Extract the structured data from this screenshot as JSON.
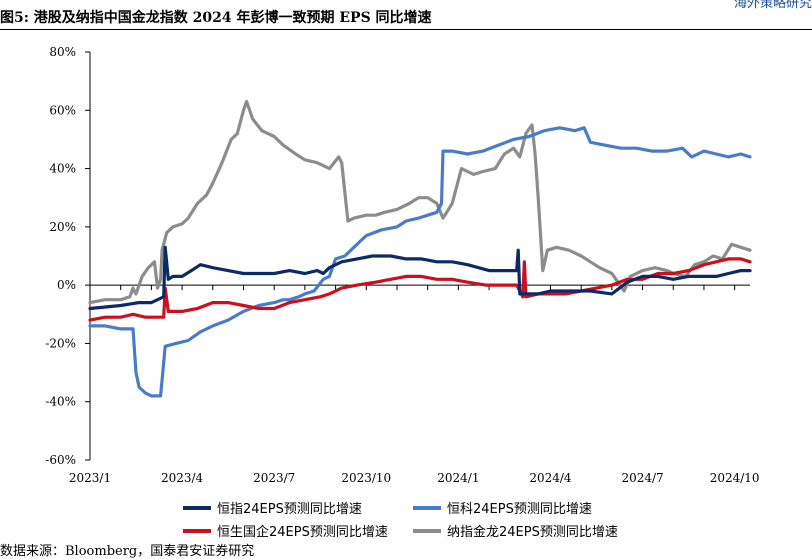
{
  "header": {
    "corner_text": "海外策略研究",
    "figure_title": "图5: 港股及纳指中国金龙指数 2024 年彭博一致预期 EPS 同比增速"
  },
  "source_note": "数据来源：Bloomberg，国泰君安证券研究",
  "colors": {
    "hsi": "#0d2a66",
    "hstech": "#4a7bc8",
    "hscei": "#c8101e",
    "hxc": "#8c8c8c"
  },
  "chart_data": {
    "type": "line",
    "title": "",
    "xlabel": "",
    "ylabel": "",
    "x_ticks": [
      "2023/1",
      "2023/4",
      "2023/7",
      "2023/10",
      "2024/1",
      "2024/4",
      "2024/7",
      "2024/10"
    ],
    "x_range_months": [
      0,
      21.5
    ],
    "ylim": [
      -60,
      80
    ],
    "y_ticks": [
      "80%",
      "60%",
      "40%",
      "20%",
      "0%",
      "-20%",
      "-40%",
      "-60%"
    ],
    "y_tick_values": [
      80,
      60,
      40,
      20,
      0,
      -20,
      -40,
      -60
    ],
    "legend": "bottom, two rows",
    "series": [
      {
        "name": "恒指24EPS预测同比增速",
        "color_key": "hsi",
        "points": [
          [
            0,
            -8
          ],
          [
            1,
            -7
          ],
          [
            1.6,
            -6
          ],
          [
            2,
            -6
          ],
          [
            2.4,
            -4
          ],
          [
            2.45,
            13
          ],
          [
            2.55,
            2
          ],
          [
            2.7,
            3
          ],
          [
            3,
            3
          ],
          [
            3.3,
            5
          ],
          [
            3.6,
            7
          ],
          [
            4,
            6
          ],
          [
            4.5,
            5
          ],
          [
            5,
            4
          ],
          [
            5.5,
            4
          ],
          [
            6,
            4
          ],
          [
            6.5,
            5
          ],
          [
            7,
            4
          ],
          [
            7.4,
            5
          ],
          [
            7.6,
            4
          ],
          [
            7.8,
            6
          ],
          [
            8.2,
            8
          ],
          [
            8.7,
            9
          ],
          [
            9.2,
            10
          ],
          [
            9.8,
            10
          ],
          [
            10.3,
            9
          ],
          [
            10.8,
            9
          ],
          [
            11.3,
            8
          ],
          [
            11.8,
            8
          ],
          [
            12.3,
            7
          ],
          [
            13,
            5
          ],
          [
            13.9,
            5
          ],
          [
            13.95,
            12
          ],
          [
            14.0,
            -3
          ],
          [
            14.1,
            -3
          ],
          [
            14.6,
            -3
          ],
          [
            15,
            -2
          ],
          [
            15.5,
            -2
          ],
          [
            15.8,
            -2
          ],
          [
            16.3,
            -2
          ],
          [
            17,
            -3
          ],
          [
            17.5,
            1
          ],
          [
            18,
            3
          ],
          [
            18.5,
            3
          ],
          [
            19,
            2
          ],
          [
            19.5,
            3
          ],
          [
            20,
            3
          ],
          [
            20.4,
            3
          ],
          [
            20.8,
            4
          ],
          [
            21.2,
            5
          ],
          [
            21.5,
            5
          ]
        ]
      },
      {
        "name": "恒科24EPS预测同比增速",
        "color_key": "hstech",
        "points": [
          [
            0,
            -14
          ],
          [
            0.5,
            -14
          ],
          [
            1,
            -15
          ],
          [
            1.4,
            -15
          ],
          [
            1.5,
            -30
          ],
          [
            1.6,
            -35
          ],
          [
            1.8,
            -37
          ],
          [
            2,
            -38
          ],
          [
            2.3,
            -38
          ],
          [
            2.45,
            -21
          ],
          [
            2.8,
            -20
          ],
          [
            3.2,
            -19
          ],
          [
            3.6,
            -16
          ],
          [
            4,
            -14
          ],
          [
            4.5,
            -12
          ],
          [
            5,
            -9
          ],
          [
            5.5,
            -7
          ],
          [
            6,
            -6
          ],
          [
            6.3,
            -5
          ],
          [
            6.5,
            -5
          ],
          [
            6.8,
            -4
          ],
          [
            7,
            -3
          ],
          [
            7.3,
            -2
          ],
          [
            7.6,
            2
          ],
          [
            7.8,
            3
          ],
          [
            8,
            9
          ],
          [
            8.3,
            10
          ],
          [
            8.5,
            12
          ],
          [
            8.8,
            15
          ],
          [
            9,
            17
          ],
          [
            9.5,
            19
          ],
          [
            10,
            20
          ],
          [
            10.3,
            22
          ],
          [
            10.7,
            23
          ],
          [
            11,
            24
          ],
          [
            11.3,
            25
          ],
          [
            11.45,
            28
          ],
          [
            11.5,
            46
          ],
          [
            11.8,
            46
          ],
          [
            12.3,
            45
          ],
          [
            12.8,
            46
          ],
          [
            13.3,
            48
          ],
          [
            13.8,
            50
          ],
          [
            14.3,
            51
          ],
          [
            14.8,
            53
          ],
          [
            15.3,
            54
          ],
          [
            15.8,
            53
          ],
          [
            16.1,
            54
          ],
          [
            16.3,
            49
          ],
          [
            16.8,
            48
          ],
          [
            17.3,
            47
          ],
          [
            17.8,
            47
          ],
          [
            18.3,
            46
          ],
          [
            18.8,
            46
          ],
          [
            19.3,
            47
          ],
          [
            19.6,
            44
          ],
          [
            20.0,
            46
          ],
          [
            20.4,
            45
          ],
          [
            20.8,
            44
          ],
          [
            21.2,
            45
          ],
          [
            21.5,
            44
          ]
        ]
      },
      {
        "name": "恒生国企24EPS预测同比增速",
        "color_key": "hscei",
        "points": [
          [
            0,
            -12
          ],
          [
            0.5,
            -11
          ],
          [
            1,
            -11
          ],
          [
            1.4,
            -10
          ],
          [
            1.8,
            -11
          ],
          [
            2.4,
            -11
          ],
          [
            2.45,
            -1
          ],
          [
            2.55,
            -9
          ],
          [
            3,
            -9
          ],
          [
            3.5,
            -8
          ],
          [
            4,
            -6
          ],
          [
            4.5,
            -6
          ],
          [
            5,
            -7
          ],
          [
            5.5,
            -8
          ],
          [
            6,
            -8
          ],
          [
            6.5,
            -6
          ],
          [
            7,
            -5
          ],
          [
            7.5,
            -4
          ],
          [
            7.8,
            -3
          ],
          [
            8.2,
            -1
          ],
          [
            8.7,
            0
          ],
          [
            9.3,
            1
          ],
          [
            9.8,
            2
          ],
          [
            10.3,
            3
          ],
          [
            10.8,
            3
          ],
          [
            11.3,
            2
          ],
          [
            11.8,
            2
          ],
          [
            12.3,
            1
          ],
          [
            12.9,
            0
          ],
          [
            13.4,
            0
          ],
          [
            13.9,
            0
          ],
          [
            14.1,
            -4
          ],
          [
            14.15,
            8
          ],
          [
            14.2,
            -4
          ],
          [
            14.6,
            -3
          ],
          [
            15,
            -3
          ],
          [
            15.5,
            -3
          ],
          [
            16,
            -2
          ],
          [
            16.5,
            -1
          ],
          [
            17,
            0
          ],
          [
            17.5,
            2
          ],
          [
            18,
            2
          ],
          [
            18.5,
            4
          ],
          [
            19,
            4
          ],
          [
            19.5,
            5
          ],
          [
            20,
            7
          ],
          [
            20.4,
            8
          ],
          [
            20.8,
            9
          ],
          [
            21.2,
            9
          ],
          [
            21.5,
            8
          ]
        ]
      },
      {
        "name": "纳指金龙24EPS预测同比增速",
        "color_key": "hxc",
        "points": [
          [
            0,
            -6
          ],
          [
            0.5,
            -5
          ],
          [
            1,
            -5
          ],
          [
            1.3,
            -4
          ],
          [
            1.4,
            -1
          ],
          [
            1.5,
            -3
          ],
          [
            1.7,
            3
          ],
          [
            1.9,
            6
          ],
          [
            2.1,
            8
          ],
          [
            2.2,
            -1
          ],
          [
            2.3,
            2
          ],
          [
            2.35,
            12
          ],
          [
            2.5,
            18
          ],
          [
            2.7,
            20
          ],
          [
            3,
            21
          ],
          [
            3.2,
            23
          ],
          [
            3.5,
            28
          ],
          [
            3.8,
            31
          ],
          [
            4,
            35
          ],
          [
            4.3,
            42
          ],
          [
            4.6,
            50
          ],
          [
            4.8,
            52
          ],
          [
            5,
            60
          ],
          [
            5.1,
            63
          ],
          [
            5.3,
            57
          ],
          [
            5.6,
            53
          ],
          [
            6,
            51
          ],
          [
            6.3,
            48
          ],
          [
            6.7,
            45
          ],
          [
            7,
            43
          ],
          [
            7.4,
            42
          ],
          [
            7.8,
            40
          ],
          [
            8.1,
            44
          ],
          [
            8.2,
            42
          ],
          [
            8.4,
            22
          ],
          [
            8.6,
            23
          ],
          [
            9,
            24
          ],
          [
            9.3,
            24
          ],
          [
            9.6,
            25
          ],
          [
            10,
            26
          ],
          [
            10.4,
            28
          ],
          [
            10.7,
            30
          ],
          [
            11,
            30
          ],
          [
            11.3,
            28
          ],
          [
            11.5,
            23
          ],
          [
            11.8,
            28
          ],
          [
            12.1,
            40
          ],
          [
            12.5,
            38
          ],
          [
            12.8,
            39
          ],
          [
            13.2,
            40
          ],
          [
            13.5,
            45
          ],
          [
            13.8,
            47
          ],
          [
            14,
            44
          ],
          [
            14.2,
            52
          ],
          [
            14.4,
            55
          ],
          [
            14.5,
            45
          ],
          [
            14.6,
            30
          ],
          [
            14.75,
            5
          ],
          [
            14.9,
            12
          ],
          [
            15.2,
            13
          ],
          [
            15.6,
            12
          ],
          [
            16,
            10
          ],
          [
            16.3,
            8
          ],
          [
            16.6,
            6
          ],
          [
            17,
            4
          ],
          [
            17.2,
            1
          ],
          [
            17.4,
            -2
          ],
          [
            17.6,
            3
          ],
          [
            18,
            5
          ],
          [
            18.4,
            6
          ],
          [
            18.8,
            5
          ],
          [
            19,
            4
          ],
          [
            19.4,
            3
          ],
          [
            19.7,
            7
          ],
          [
            20,
            8
          ],
          [
            20.3,
            10
          ],
          [
            20.6,
            9
          ],
          [
            20.9,
            14
          ],
          [
            21.2,
            13
          ],
          [
            21.5,
            12
          ]
        ]
      }
    ]
  }
}
